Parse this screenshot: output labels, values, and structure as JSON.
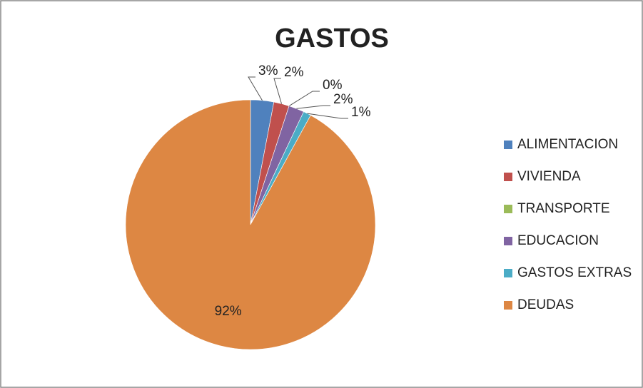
{
  "chart_data": {
    "type": "pie",
    "title": "GASTOS",
    "categories": [
      "ALIMENTACION",
      "VIVIENDA",
      "TRANSPORTE",
      "EDUCACION",
      "GASTOS EXTRAS",
      "DEUDAS"
    ],
    "values": [
      3,
      2,
      0,
      2,
      1,
      92
    ],
    "value_labels": [
      "3%",
      "2%",
      "0%",
      "2%",
      "1%",
      "92%"
    ],
    "colors": [
      "#4f81bd",
      "#c0504d",
      "#9bbb59",
      "#8064a2",
      "#4bacc6",
      "#dd8743"
    ],
    "legend": "right"
  }
}
